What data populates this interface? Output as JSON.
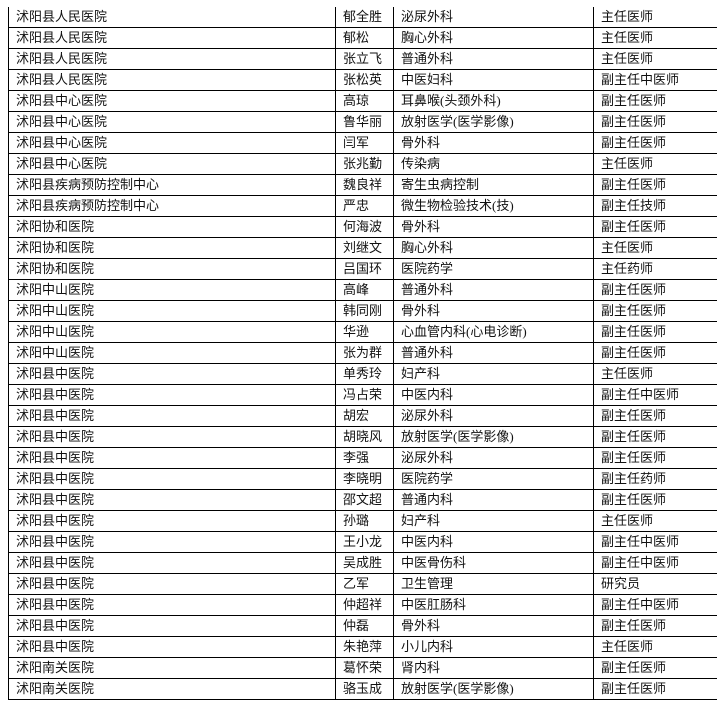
{
  "rows": [
    [
      "沭阳县人民医院",
      "郁全胜",
      "泌尿外科",
      "主任医师"
    ],
    [
      "沭阳县人民医院",
      "郁松",
      "胸心外科",
      "主任医师"
    ],
    [
      "沭阳县人民医院",
      "张立飞",
      "普通外科",
      "主任医师"
    ],
    [
      "沭阳县人民医院",
      "张松英",
      "中医妇科",
      "副主任中医师"
    ],
    [
      "沭阳县中心医院",
      "高琼",
      "耳鼻喉(头颈外科)",
      "副主任医师"
    ],
    [
      "沭阳县中心医院",
      "鲁华丽",
      "放射医学(医学影像)",
      "副主任医师"
    ],
    [
      "沭阳县中心医院",
      "闫军",
      "骨外科",
      "副主任医师"
    ],
    [
      "沭阳县中心医院",
      "张兆勤",
      "传染病",
      "主任医师"
    ],
    [
      "沭阳县疾病预防控制中心",
      "魏良祥",
      "寄生虫病控制",
      "副主任医师"
    ],
    [
      "沭阳县疾病预防控制中心",
      "严忠",
      "微生物检验技术(技)",
      "副主任技师"
    ],
    [
      "沭阳协和医院",
      "何海波",
      "骨外科",
      "副主任医师"
    ],
    [
      "沭阳协和医院",
      "刘继文",
      "胸心外科",
      "主任医师"
    ],
    [
      "沭阳协和医院",
      "吕国环",
      "医院药学",
      "主任药师"
    ],
    [
      "沭阳中山医院",
      "高峰",
      "普通外科",
      "副主任医师"
    ],
    [
      "沭阳中山医院",
      "韩同刚",
      "骨外科",
      "副主任医师"
    ],
    [
      "沭阳中山医院",
      "华逊",
      "心血管内科(心电诊断)",
      "副主任医师"
    ],
    [
      "沭阳中山医院",
      "张为群",
      "普通外科",
      "副主任医师"
    ],
    [
      "沭阳县中医院",
      "单秀玲",
      "妇产科",
      "主任医师"
    ],
    [
      "沭阳县中医院",
      "冯占荣",
      "中医内科",
      "副主任中医师"
    ],
    [
      "沭阳县中医院",
      "胡宏",
      "泌尿外科",
      "副主任医师"
    ],
    [
      "沭阳县中医院",
      "胡晓风",
      "放射医学(医学影像)",
      "副主任医师"
    ],
    [
      "沭阳县中医院",
      "李强",
      "泌尿外科",
      "副主任医师"
    ],
    [
      "沭阳县中医院",
      "李晓明",
      "医院药学",
      "副主任药师"
    ],
    [
      "沭阳县中医院",
      "邵文超",
      "普通内科",
      "副主任医师"
    ],
    [
      "沭阳县中医院",
      "孙璐",
      "妇产科",
      "主任医师"
    ],
    [
      "沭阳县中医院",
      "王小龙",
      "中医内科",
      "副主任中医师"
    ],
    [
      "沭阳县中医院",
      "吴成胜",
      "中医骨伤科",
      "副主任中医师"
    ],
    [
      "沭阳县中医院",
      "乙军",
      "卫生管理",
      "研究员"
    ],
    [
      "沭阳县中医院",
      "仲超祥",
      "中医肛肠科",
      "副主任中医师"
    ],
    [
      "沭阳县中医院",
      "仲磊",
      "骨外科",
      "副主任医师"
    ],
    [
      "沭阳县中医院",
      "朱艳萍",
      "小儿内科",
      "主任医师"
    ],
    [
      "沭阳南关医院",
      "葛怀荣",
      "肾内科",
      "副主任医师"
    ],
    [
      "沭阳南关医院",
      "骆玉成",
      "放射医学(医学影像)",
      "副主任医师"
    ]
  ]
}
